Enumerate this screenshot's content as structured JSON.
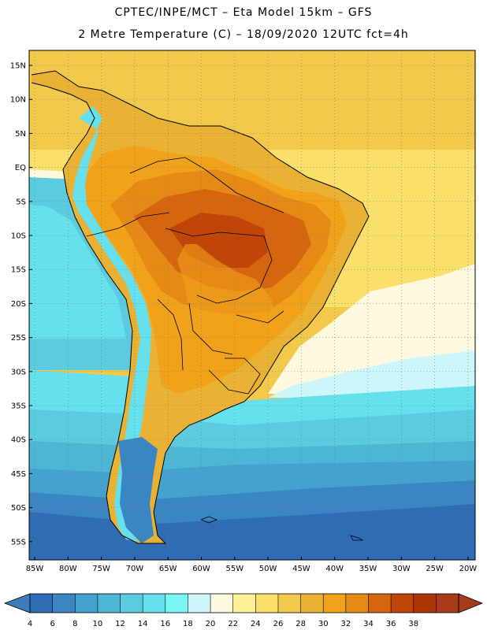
{
  "header": {
    "line1": "CPTEC/INPE/MCT –   Eta Model 15km – GFS",
    "line2": "2 Metre Temperature (C) – 18/09/2020 12UTC fct=4h"
  },
  "map": {
    "lat_labels": [
      "15N",
      "10N",
      "5N",
      "EQ",
      "5S",
      "10S",
      "15S",
      "20S",
      "25S",
      "30S",
      "35S",
      "40S",
      "45S",
      "50S",
      "55S"
    ],
    "lon_labels": [
      "85W",
      "80W",
      "75W",
      "70W",
      "65W",
      "60W",
      "55W",
      "50W",
      "45W",
      "40W",
      "35W",
      "30W",
      "25W",
      "20W"
    ]
  },
  "legend": {
    "values": [
      "4",
      "6",
      "8",
      "10",
      "12",
      "14",
      "16",
      "18",
      "20",
      "22",
      "24",
      "26",
      "28",
      "30",
      "32",
      "34",
      "36",
      "38"
    ],
    "colors": [
      "#2f6cb4",
      "#3a85c2",
      "#45a1cd",
      "#4fb5d5",
      "#5ccbe0",
      "#66e0ec",
      "#78f5f5",
      "#cdf6fb",
      "#fdf8de",
      "#fdf096",
      "#fae06a",
      "#f3c94c",
      "#eab235",
      "#f0a21b",
      "#e58a17",
      "#d6650f",
      "#bf4509",
      "#ad3506",
      "#a83b1a"
    ],
    "low_color": "#3a7dbf",
    "high_color": "#a83b1a"
  }
}
